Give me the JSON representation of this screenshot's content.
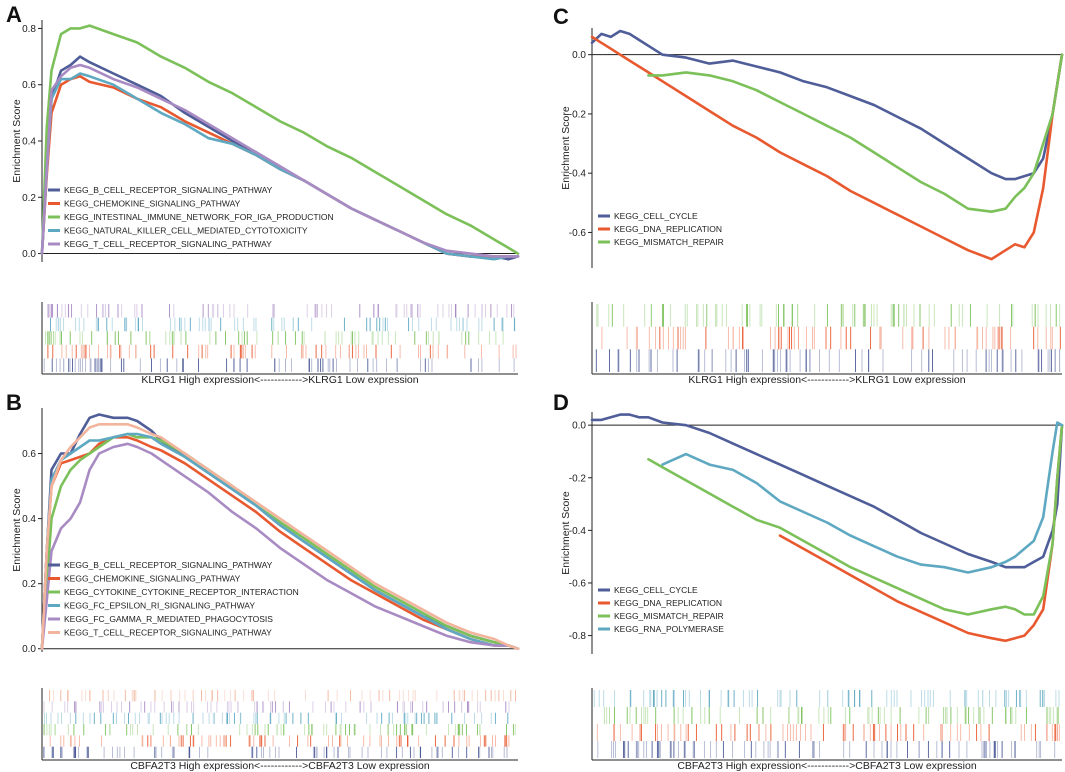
{
  "colors": {
    "navy": "#4f5d99",
    "orange": "#e8592f",
    "green": "#7cc05a",
    "teal": "#5ea8c2",
    "purple": "#a98bc4",
    "peach": "#f2b49c"
  },
  "chart_data": [
    {
      "id": "A",
      "type": "line",
      "panel_label": "A",
      "ylabel": "Enrichment Score",
      "xlabel": "KLRG1 High expression<------------>KLRG1 Low expression",
      "ylim": [
        -0.03,
        0.83
      ],
      "yticks": [
        0.0,
        0.2,
        0.4,
        0.6,
        0.8
      ],
      "ytick_labels": [
        "0.0",
        "0.2",
        "0.4",
        "0.6",
        "0.8"
      ],
      "x": [
        0,
        0.01,
        0.02,
        0.04,
        0.06,
        0.08,
        0.1,
        0.15,
        0.2,
        0.25,
        0.3,
        0.35,
        0.4,
        0.45,
        0.5,
        0.55,
        0.6,
        0.65,
        0.7,
        0.75,
        0.8,
        0.85,
        0.9,
        0.95,
        0.98,
        1.0
      ],
      "legend": "left",
      "series": [
        {
          "name": "KEGG_B_CELL_RECEPTOR_SIGNALING_PATHWAY",
          "color": "#4f5d99",
          "values": [
            0.0,
            0.3,
            0.55,
            0.65,
            0.67,
            0.7,
            0.68,
            0.64,
            0.6,
            0.56,
            0.5,
            0.45,
            0.4,
            0.36,
            0.3,
            0.26,
            0.21,
            0.16,
            0.12,
            0.08,
            0.04,
            0.0,
            -0.01,
            -0.01,
            -0.02,
            -0.01
          ]
        },
        {
          "name": "KEGG_CHEMOKINE_SIGNALING_PATHWAY",
          "color": "#e8592f",
          "values": [
            0.0,
            0.28,
            0.5,
            0.6,
            0.62,
            0.63,
            0.61,
            0.59,
            0.55,
            0.52,
            0.47,
            0.43,
            0.39,
            0.35,
            0.3,
            0.26,
            0.21,
            0.16,
            0.12,
            0.08,
            0.04,
            0.0,
            -0.01,
            -0.01,
            -0.01,
            -0.01
          ]
        },
        {
          "name": "KEGG_INTESTINAL_IMMUNE_NETWORK_FOR_IGA_PRODUCTION",
          "color": "#7cc05a",
          "values": [
            0.0,
            0.45,
            0.65,
            0.78,
            0.8,
            0.8,
            0.81,
            0.78,
            0.75,
            0.7,
            0.66,
            0.61,
            0.57,
            0.52,
            0.47,
            0.43,
            0.38,
            0.34,
            0.29,
            0.24,
            0.19,
            0.14,
            0.1,
            0.05,
            0.02,
            0.0
          ]
        },
        {
          "name": "KEGG_NATURAL_KILLER_CELL_MEDIATED_CYTOTOXICITY",
          "color": "#5ea8c2",
          "values": [
            0.0,
            0.3,
            0.55,
            0.62,
            0.62,
            0.64,
            0.63,
            0.6,
            0.55,
            0.5,
            0.46,
            0.41,
            0.39,
            0.35,
            0.3,
            0.26,
            0.21,
            0.16,
            0.12,
            0.08,
            0.04,
            0.0,
            -0.01,
            -0.02,
            -0.01,
            -0.01
          ]
        },
        {
          "name": "KEGG_T_CELL_RECEPTOR_SIGNALING_PATHWAY",
          "color": "#a98bc4",
          "values": [
            0.0,
            0.3,
            0.58,
            0.63,
            0.66,
            0.67,
            0.66,
            0.62,
            0.59,
            0.55,
            0.51,
            0.46,
            0.41,
            0.36,
            0.31,
            0.26,
            0.21,
            0.16,
            0.12,
            0.08,
            0.04,
            0.01,
            0.0,
            -0.01,
            -0.01,
            -0.01
          ]
        }
      ]
    },
    {
      "id": "B",
      "type": "line",
      "panel_label": "B",
      "ylabel": "Enrichment Score",
      "xlabel": "CBFA2T3 High expression<------------>CBFA2T3 Low expression",
      "ylim": [
        -0.01,
        0.74
      ],
      "yticks": [
        0.0,
        0.2,
        0.4,
        0.6
      ],
      "ytick_labels": [
        "0.0",
        "0.2",
        "0.4",
        "0.6"
      ],
      "x": [
        0,
        0.01,
        0.02,
        0.04,
        0.06,
        0.08,
        0.1,
        0.12,
        0.15,
        0.18,
        0.2,
        0.23,
        0.25,
        0.3,
        0.35,
        0.4,
        0.45,
        0.5,
        0.55,
        0.6,
        0.65,
        0.7,
        0.75,
        0.8,
        0.85,
        0.9,
        0.95,
        0.98,
        1.0
      ],
      "legend": "left",
      "series": [
        {
          "name": "KEGG_B_CELL_RECEPTOR_SIGNALING_PATHWAY",
          "color": "#4f5d99",
          "values": [
            0.0,
            0.3,
            0.55,
            0.6,
            0.6,
            0.66,
            0.71,
            0.72,
            0.71,
            0.71,
            0.7,
            0.67,
            0.64,
            0.59,
            0.54,
            0.49,
            0.44,
            0.38,
            0.33,
            0.28,
            0.23,
            0.18,
            0.14,
            0.1,
            0.07,
            0.04,
            0.02,
            0.01,
            0.0
          ]
        },
        {
          "name": "KEGG_CHEMOKINE_SIGNALING_PATHWAY",
          "color": "#e8592f",
          "values": [
            0.0,
            0.3,
            0.5,
            0.57,
            0.58,
            0.59,
            0.6,
            0.63,
            0.65,
            0.65,
            0.64,
            0.62,
            0.61,
            0.57,
            0.52,
            0.47,
            0.42,
            0.36,
            0.31,
            0.26,
            0.21,
            0.17,
            0.13,
            0.09,
            0.06,
            0.03,
            0.01,
            0.01,
            0.0
          ]
        },
        {
          "name": "KEGG_CYTOKINE_CYTOKINE_RECEPTOR_INTERACTION",
          "color": "#7cc05a",
          "values": [
            0.0,
            0.2,
            0.4,
            0.5,
            0.55,
            0.58,
            0.6,
            0.62,
            0.65,
            0.66,
            0.65,
            0.65,
            0.64,
            0.6,
            0.55,
            0.5,
            0.44,
            0.39,
            0.34,
            0.29,
            0.24,
            0.19,
            0.15,
            0.11,
            0.07,
            0.04,
            0.02,
            0.01,
            0.0
          ]
        },
        {
          "name": "KEGG_FC_EPSILON_RI_SIGNALING_PATHWAY",
          "color": "#5ea8c2",
          "values": [
            0.0,
            0.3,
            0.52,
            0.58,
            0.6,
            0.62,
            0.64,
            0.64,
            0.65,
            0.66,
            0.66,
            0.65,
            0.63,
            0.59,
            0.54,
            0.49,
            0.44,
            0.38,
            0.33,
            0.28,
            0.23,
            0.18,
            0.14,
            0.1,
            0.06,
            0.03,
            0.01,
            0.01,
            0.0
          ]
        },
        {
          "name": "KEGG_FC_GAMMA_R_MEDIATED_PHAGOCYTOSIS",
          "color": "#a98bc4",
          "values": [
            0.0,
            0.15,
            0.3,
            0.37,
            0.4,
            0.45,
            0.55,
            0.6,
            0.62,
            0.63,
            0.62,
            0.6,
            0.58,
            0.53,
            0.48,
            0.42,
            0.37,
            0.31,
            0.26,
            0.21,
            0.17,
            0.13,
            0.1,
            0.07,
            0.04,
            0.02,
            0.01,
            0.01,
            0.0
          ]
        },
        {
          "name": "KEGG_T_CELL_RECEPTOR_SIGNALING_PATHWAY",
          "color": "#f2b49c",
          "values": [
            0.0,
            0.3,
            0.5,
            0.58,
            0.62,
            0.65,
            0.68,
            0.69,
            0.69,
            0.69,
            0.68,
            0.66,
            0.65,
            0.6,
            0.55,
            0.5,
            0.45,
            0.4,
            0.35,
            0.3,
            0.25,
            0.2,
            0.16,
            0.12,
            0.08,
            0.05,
            0.03,
            0.01,
            0.0
          ]
        }
      ]
    },
    {
      "id": "C",
      "type": "line",
      "panel_label": "C",
      "ylabel": "Enrichment Score",
      "xlabel": "KLRG1 High expression<------------>KLRG1 Low expression",
      "ylim": [
        -0.72,
        0.09
      ],
      "yticks": [
        0.0,
        -0.2,
        -0.4,
        -0.6
      ],
      "ytick_labels": [
        "0.0",
        "-0.2",
        "-0.4",
        "-0.6"
      ],
      "x": [
        0,
        0.02,
        0.04,
        0.06,
        0.08,
        0.1,
        0.12,
        0.15,
        0.2,
        0.25,
        0.3,
        0.35,
        0.4,
        0.45,
        0.5,
        0.55,
        0.6,
        0.65,
        0.7,
        0.75,
        0.8,
        0.85,
        0.88,
        0.9,
        0.92,
        0.94,
        0.96,
        0.98,
        0.99,
        1.0
      ],
      "legend": "left",
      "series": [
        {
          "name": "KEGG_CELL_CYCLE",
          "color": "#4f5d99",
          "values": [
            0.04,
            0.07,
            0.06,
            0.08,
            0.07,
            0.05,
            0.03,
            0.0,
            -0.01,
            -0.03,
            -0.02,
            -0.04,
            -0.06,
            -0.09,
            -0.11,
            -0.14,
            -0.17,
            -0.21,
            -0.25,
            -0.3,
            -0.35,
            -0.4,
            -0.42,
            -0.42,
            -0.41,
            -0.4,
            -0.35,
            -0.2,
            -0.1,
            0.0
          ]
        },
        {
          "name": "KEGG_DNA_REPLICATION",
          "color": "#e8592f",
          "values": [
            0.06,
            0.04,
            0.02,
            0.0,
            -0.02,
            -0.04,
            -0.06,
            -0.09,
            -0.14,
            -0.19,
            -0.24,
            -0.28,
            -0.33,
            -0.37,
            -0.41,
            -0.46,
            -0.5,
            -0.54,
            -0.58,
            -0.62,
            -0.66,
            -0.69,
            -0.66,
            -0.64,
            -0.65,
            -0.6,
            -0.45,
            -0.2,
            -0.1,
            0.0
          ]
        },
        {
          "name": "KEGG_MISMATCH_REPAIR",
          "color": "#7cc05a",
          "values": [
            null,
            null,
            null,
            null,
            null,
            null,
            -0.07,
            -0.07,
            -0.06,
            -0.07,
            -0.09,
            -0.12,
            -0.16,
            -0.2,
            -0.24,
            -0.28,
            -0.33,
            -0.38,
            -0.43,
            -0.47,
            -0.52,
            -0.53,
            -0.52,
            -0.48,
            -0.45,
            -0.4,
            -0.3,
            -0.2,
            -0.1,
            0.0
          ]
        }
      ]
    },
    {
      "id": "D",
      "type": "line",
      "panel_label": "D",
      "ylabel": "Enrichment Score",
      "xlabel": "CBFA2T3 High expression<------------>CBFA2T3 Low expression",
      "ylim": [
        -0.87,
        0.05
      ],
      "yticks": [
        0.0,
        -0.2,
        -0.4,
        -0.6,
        -0.8
      ],
      "ytick_labels": [
        "0.0",
        "-0.2",
        "-0.4",
        "-0.6",
        "-0.8"
      ],
      "x": [
        0,
        0.02,
        0.04,
        0.06,
        0.08,
        0.1,
        0.12,
        0.15,
        0.2,
        0.25,
        0.3,
        0.35,
        0.4,
        0.45,
        0.5,
        0.55,
        0.6,
        0.65,
        0.7,
        0.75,
        0.8,
        0.85,
        0.88,
        0.9,
        0.92,
        0.94,
        0.96,
        0.98,
        0.99,
        1.0
      ],
      "legend": "left",
      "series": [
        {
          "name": "KEGG_CELL_CYCLE",
          "color": "#4f5d99",
          "values": [
            0.02,
            0.02,
            0.03,
            0.04,
            0.04,
            0.03,
            0.03,
            0.01,
            0.0,
            -0.03,
            -0.07,
            -0.11,
            -0.15,
            -0.19,
            -0.23,
            -0.27,
            -0.31,
            -0.36,
            -0.41,
            -0.45,
            -0.49,
            -0.52,
            -0.54,
            -0.54,
            -0.54,
            -0.52,
            -0.5,
            -0.4,
            -0.3,
            0.0
          ]
        },
        {
          "name": "KEGG_DNA_REPLICATION",
          "color": "#e8592f",
          "values": [
            null,
            null,
            null,
            null,
            null,
            null,
            null,
            null,
            null,
            null,
            null,
            null,
            -0.42,
            -0.47,
            -0.52,
            -0.57,
            -0.62,
            -0.67,
            -0.71,
            -0.75,
            -0.79,
            -0.81,
            -0.82,
            -0.81,
            -0.8,
            -0.76,
            -0.7,
            -0.45,
            -0.2,
            0.0
          ]
        },
        {
          "name": "KEGG_MISMATCH_REPAIR",
          "color": "#7cc05a",
          "values": [
            null,
            null,
            null,
            null,
            null,
            null,
            -0.13,
            -0.16,
            -0.21,
            -0.26,
            -0.31,
            -0.36,
            -0.39,
            -0.44,
            -0.49,
            -0.54,
            -0.58,
            -0.62,
            -0.66,
            -0.7,
            -0.72,
            -0.7,
            -0.69,
            -0.7,
            -0.72,
            -0.72,
            -0.65,
            -0.45,
            -0.2,
            0.0
          ]
        },
        {
          "name": "KEGG_RNA_POLYMERASE",
          "color": "#5ea8c2",
          "values": [
            null,
            null,
            null,
            null,
            null,
            null,
            null,
            -0.15,
            -0.11,
            -0.15,
            -0.17,
            -0.22,
            -0.29,
            -0.33,
            -0.37,
            -0.42,
            -0.46,
            -0.5,
            -0.53,
            -0.54,
            -0.56,
            -0.54,
            -0.52,
            -0.5,
            -0.47,
            -0.44,
            -0.35,
            -0.1,
            0.01,
            0.0
          ]
        }
      ]
    }
  ]
}
